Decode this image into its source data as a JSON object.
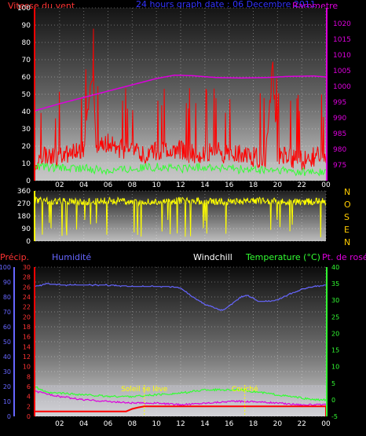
{
  "header": {
    "wind_label": "Vitesse du vent",
    "title": "24 hours graph date : 06 Decembre 2011",
    "baro_label": "Barometre"
  },
  "colors": {
    "wind": "#ff0000",
    "gust_green": "#33ff33",
    "baro": "#dd00dd",
    "direction": "#ffff00",
    "humidity": "#6666ff",
    "temperature": "#33ff33",
    "dewpoint": "#dd00dd",
    "precip": "#ff0000",
    "title_blue": "#3333ff",
    "precip_label": "#ff3333",
    "compass": "#ffcc00",
    "sun_label": "#ffff00"
  },
  "compass": [
    "N",
    "O",
    "S",
    "E",
    "N"
  ],
  "time_ticks": [
    "02",
    "04",
    "06",
    "08",
    "10",
    "12",
    "14",
    "16",
    "18",
    "20",
    "22",
    "00"
  ],
  "chart_data": [
    {
      "type": "line",
      "title": "24 hours graph date : 06 Decembre 2011",
      "x_hours": [
        0,
        24
      ],
      "left_axis": {
        "label": "Vitesse du vent",
        "range": [
          0,
          100
        ],
        "ticks": [
          0,
          10,
          20,
          30,
          40,
          50,
          60,
          70,
          80,
          90,
          100
        ]
      },
      "right_axis": {
        "label": "Barometre",
        "range": [
          970,
          1025
        ],
        "ticks": [
          975,
          980,
          985,
          990,
          995,
          1000,
          1005,
          1010,
          1015,
          1020
        ]
      },
      "series": [
        {
          "name": "Vitesse du vent",
          "color": "#ff0000",
          "axis": "left",
          "x": [
            0,
            1,
            2,
            3,
            4,
            4.8,
            5,
            6,
            7,
            8,
            9,
            10,
            11,
            12,
            13,
            14,
            15,
            16,
            17,
            18,
            19,
            19.6,
            20,
            21,
            22,
            23,
            24
          ],
          "y": [
            12,
            15,
            14,
            16,
            18,
            66,
            20,
            22,
            19,
            16,
            15,
            17,
            16,
            18,
            15,
            16,
            17,
            15,
            16,
            14,
            13,
            68,
            14,
            13,
            12,
            14,
            15
          ]
        },
        {
          "color": "#33ff33",
          "axis": "left",
          "x": [
            0,
            2,
            4,
            6,
            8,
            10,
            12,
            14,
            16,
            18,
            20,
            22,
            24
          ],
          "y": [
            8,
            7,
            7,
            6,
            7,
            8,
            7,
            8,
            7,
            6,
            6,
            5,
            5
          ]
        },
        {
          "name": "Barometre",
          "color": "#dd00dd",
          "axis": "right",
          "x": [
            0,
            2,
            4,
            6,
            8,
            10,
            11.5,
            13,
            15,
            17,
            19,
            21,
            23,
            24
          ],
          "y": [
            992.3,
            994.5,
            996.5,
            998.5,
            1000.5,
            1002.5,
            1003.6,
            1003.4,
            1002.8,
            1002.7,
            1002.8,
            1003.2,
            1003.3,
            1003.0
          ]
        }
      ]
    },
    {
      "type": "line",
      "title": "",
      "x_hours": [
        0,
        24
      ],
      "left_axis": {
        "range": [
          0,
          360
        ],
        "ticks": [
          0,
          90,
          180,
          270,
          360
        ]
      },
      "series": [
        {
          "color": "#ffff00",
          "x": [
            0,
            2,
            4,
            6,
            8,
            10,
            12,
            14,
            16,
            18,
            20,
            22,
            24
          ],
          "y": [
            290,
            285,
            280,
            290,
            285,
            280,
            290,
            285,
            280,
            290,
            285,
            280,
            285
          ]
        }
      ]
    },
    {
      "type": "line",
      "title": "",
      "x_hours": [
        0,
        24
      ],
      "labels": {
        "precip": "Précip.",
        "humidity": "Humidité",
        "windchill": "Windchill",
        "temperature": "Temperature (°C)",
        "dewpoint": "Pt. de rosée"
      },
      "axes": {
        "humidity": {
          "range": [
            0,
            100
          ],
          "ticks": [
            0,
            10,
            20,
            30,
            40,
            50,
            60,
            70,
            80,
            90,
            100
          ]
        },
        "precip": {
          "range": [
            0,
            30
          ],
          "ticks": [
            0,
            2,
            4,
            6,
            8,
            10,
            12,
            14,
            16,
            18,
            20,
            22,
            24,
            26,
            28,
            30
          ]
        },
        "temperature": {
          "range": [
            -5,
            40
          ],
          "ticks": [
            -5,
            0,
            5,
            10,
            15,
            20,
            25,
            30,
            35,
            40
          ]
        }
      },
      "annotations": [
        {
          "text": "Soleil se lève",
          "x": 9.0
        },
        {
          "text": "Couché",
          "x": 17.3
        }
      ],
      "series": [
        {
          "name": "Humidité",
          "color": "#6666ff",
          "axis": "humidity",
          "x": [
            0,
            1,
            2,
            4,
            6,
            8,
            10,
            11,
            12,
            13,
            14,
            15,
            15.5,
            16,
            17,
            17.5,
            18,
            18.5,
            19,
            20,
            21,
            22,
            23,
            24
          ],
          "y": [
            87,
            89,
            88,
            88,
            88,
            87,
            87,
            87,
            86,
            80,
            75,
            72,
            71,
            74,
            80,
            81,
            79,
            77,
            77,
            78,
            82,
            85,
            87,
            88
          ]
        },
        {
          "name": "Temperature (°C)",
          "color": "#33ff33",
          "axis": "temperature",
          "x": [
            0,
            1,
            2,
            4,
            6,
            8,
            10,
            12,
            14,
            16,
            17,
            19,
            21,
            23,
            24
          ],
          "y": [
            4,
            2,
            2,
            1.5,
            1,
            1,
            1.5,
            2,
            3,
            3,
            3,
            2,
            1,
            0,
            0
          ]
        },
        {
          "name": "Pt. de rosée",
          "color": "#dd00dd",
          "axis": "temperature",
          "x": [
            0,
            2,
            4,
            6,
            8,
            10,
            12,
            14,
            16,
            18,
            20,
            22,
            24
          ],
          "y": [
            2.5,
            1,
            0,
            -0.5,
            -1,
            -1,
            -1.5,
            -1,
            -0.5,
            -0.5,
            -1,
            -1.5,
            -1.5
          ]
        },
        {
          "name": "Précip.",
          "color": "#ff0000",
          "axis": "precip",
          "x": [
            0,
            7.5,
            8,
            8.5,
            9,
            24,
            24.1
          ],
          "y": [
            1,
            1,
            1.5,
            1.8,
            2,
            2,
            0
          ]
        }
      ]
    }
  ]
}
